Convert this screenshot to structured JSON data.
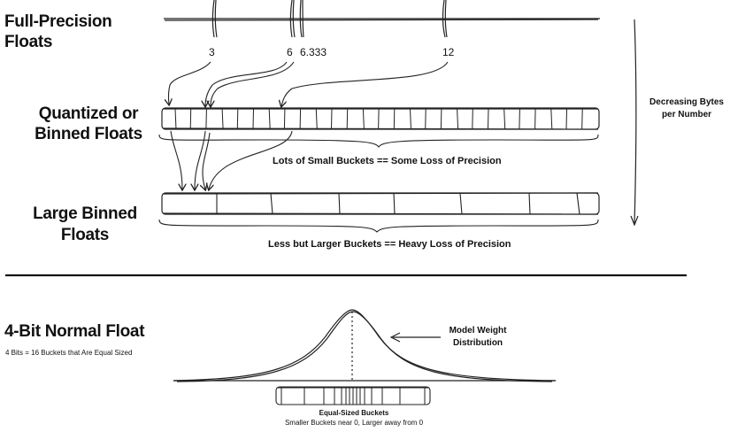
{
  "sections": {
    "full_precision": {
      "title_line1": "Full-Precision",
      "title_line2": "Floats"
    },
    "quantized": {
      "title_line1": "Quantized or",
      "title_line2": "Binned Floats",
      "caption": "Lots of Small Buckets == Some Loss of Precision"
    },
    "large_binned": {
      "title_line1": "Large Binned",
      "title_line2": "Floats",
      "caption": "Less but Larger Buckets == Heavy Loss of Precision"
    },
    "nf4": {
      "title": "4-Bit Normal Float",
      "subtitle": "4 Bits = 16 Buckets that Are Equal Sized",
      "weight_label_line1": "Model Weight",
      "weight_label_line2": "Distribution",
      "buckets_line1": "Equal-Sized Buckets",
      "buckets_line2": "Smaller Buckets near 0, Larger away from 0"
    }
  },
  "values": [
    "3",
    "6",
    "6.333",
    "12"
  ],
  "side_label": {
    "line1": "Decreasing Bytes",
    "line2": "per Number"
  }
}
